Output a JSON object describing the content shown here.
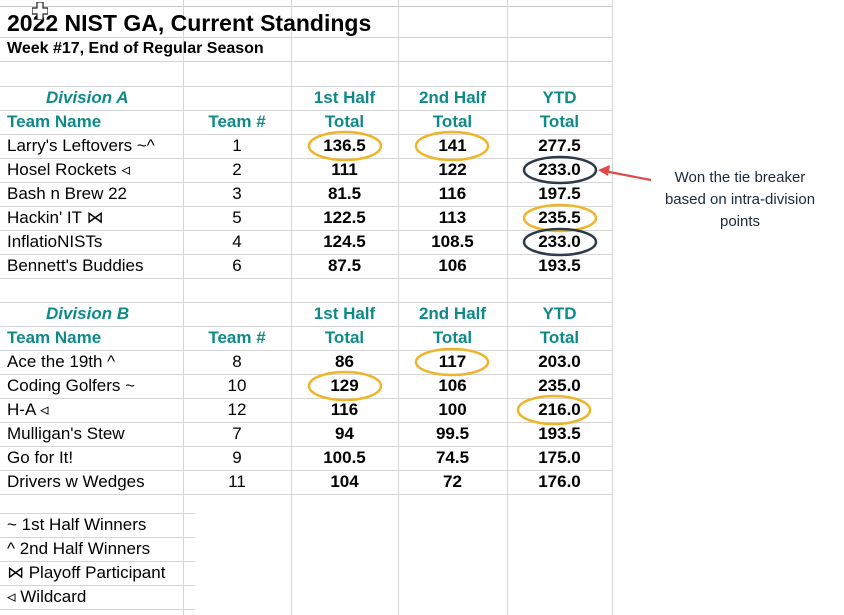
{
  "title": "2022 NIST GA, Current Standings",
  "subtitle": "Week #17, End of Regular Season",
  "divisionA": {
    "name": "Division A",
    "h1_header": "1st Half",
    "h2_header": "2nd Half",
    "ytd_header": "YTD",
    "col_team_name": "Team Name",
    "col_team_num": "Team #",
    "col_total1": "Total",
    "col_total2": "Total",
    "col_total3": "Total",
    "rows": [
      {
        "name": "Larry's Leftovers ~^",
        "team": "1",
        "h1": "136.5",
        "h2": "141",
        "ytd": "277.5"
      },
      {
        "name": "Hosel Rockets ◃",
        "team": "2",
        "h1": "111",
        "h2": "122",
        "ytd": "233.0"
      },
      {
        "name": "Bash n Brew 22",
        "team": "3",
        "h1": "81.5",
        "h2": "116",
        "ytd": "197.5"
      },
      {
        "name": "Hackin' IT  ⋈",
        "team": "5",
        "h1": "122.5",
        "h2": "113",
        "ytd": "235.5"
      },
      {
        "name": "InflatioNISTs",
        "team": "4",
        "h1": "124.5",
        "h2": "108.5",
        "ytd": "233.0"
      },
      {
        "name": "Bennett's Buddies",
        "team": "6",
        "h1": "87.5",
        "h2": "106",
        "ytd": "193.5"
      }
    ]
  },
  "divisionB": {
    "name": "Division B",
    "h1_header": "1st Half",
    "h2_header": "2nd Half",
    "ytd_header": "YTD",
    "col_team_name": "Team Name",
    "col_team_num": "Team #",
    "col_total1": "Total",
    "col_total2": "Total",
    "col_total3": "Total",
    "rows": [
      {
        "name": "Ace the 19th ^",
        "team": "8",
        "h1": "86",
        "h2": "117",
        "ytd": "203.0"
      },
      {
        "name": "Coding Golfers ~",
        "team": "10",
        "h1": "129",
        "h2": "106",
        "ytd": "235.0"
      },
      {
        "name": "H-A ◃",
        "team": "12",
        "h1": "116",
        "h2": "100",
        "ytd": "216.0"
      },
      {
        "name": "Mulligan's Stew",
        "team": "7",
        "h1": "94",
        "h2": "99.5",
        "ytd": "193.5"
      },
      {
        "name": "Go for It!",
        "team": "9",
        "h1": "100.5",
        "h2": "74.5",
        "ytd": "175.0"
      },
      {
        "name": "Drivers w Wedges",
        "team": "11",
        "h1": "104",
        "h2": "72",
        "ytd": "176.0"
      }
    ]
  },
  "legend": [
    " ~ 1st Half Winners",
    "  ^ 2nd Half Winners",
    "⋈ Playoff Participant",
    "◃  Wildcard"
  ],
  "annotation": {
    "line1": "Won the tie breaker",
    "line2": "based on intra-division",
    "line3": "points"
  },
  "colors": {
    "header_teal": "#0f8a8a",
    "highlight_gold": "#f0b429",
    "highlight_navy": "#2d3a4a",
    "arrow_red": "#e04848"
  },
  "icons": {
    "cursor": "cell-cursor-cross-icon"
  }
}
